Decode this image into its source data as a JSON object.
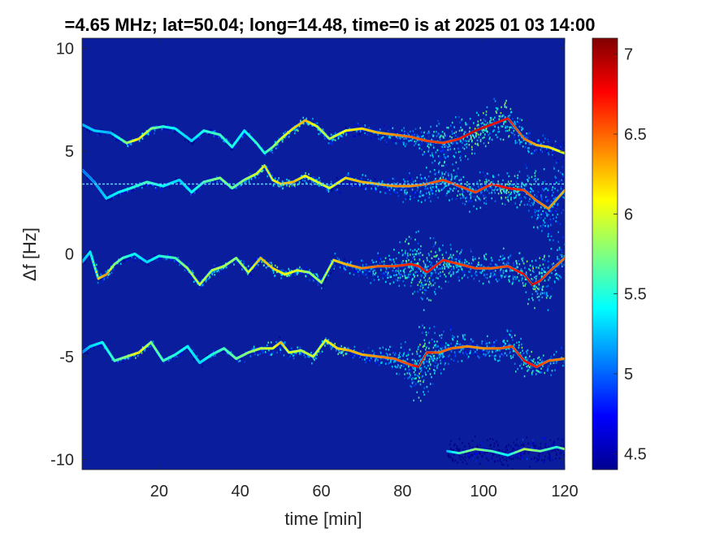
{
  "chart_data": {
    "type": "heatmap",
    "title": "=4.65 MHz;  lat=50.04; long=14.48, time=0 is at 2025 01 03 14:00",
    "xlabel": "time [min]",
    "ylabel": "Δf [Hz]",
    "xlim": [
      1,
      120
    ],
    "ylim": [
      -10.5,
      10.5
    ],
    "xticks": [
      20,
      40,
      60,
      80,
      100,
      120
    ],
    "xtick_labels": [
      "20",
      "40",
      "60",
      "80",
      "100",
      "120"
    ],
    "yticks": [
      -10,
      -5,
      0,
      5,
      10
    ],
    "ytick_labels": [
      "-10",
      "-5",
      "0",
      "5",
      "10"
    ],
    "colorbar": {
      "range": [
        4.4,
        7.1
      ],
      "ticks": [
        4.5,
        5,
        5.5,
        6,
        6.5,
        7
      ],
      "tick_labels": [
        "4.5",
        "5",
        "5.5",
        "6",
        "6.5",
        "7"
      ],
      "colormap": "jet"
    },
    "background_color": "#0a1d9c",
    "horizontal_line": {
      "y": 3.4,
      "color": "#5fd0ff"
    },
    "series": [
      {
        "x": [
          1,
          4,
          8,
          12,
          15,
          18,
          21,
          24,
          28,
          31,
          35,
          38,
          41,
          44,
          46,
          48,
          50,
          53,
          56,
          59,
          62,
          66,
          70,
          74,
          78,
          82,
          86,
          90,
          94,
          98,
          102,
          106,
          108,
          110,
          113,
          116,
          120
        ],
        "y": [
          6.3,
          6.0,
          5.9,
          5.4,
          5.6,
          6.1,
          6.2,
          6.1,
          5.5,
          6.0,
          5.8,
          5.2,
          6.0,
          5.4,
          4.9,
          5.2,
          5.6,
          6.1,
          6.5,
          6.2,
          5.6,
          6.0,
          6.1,
          5.9,
          5.8,
          5.7,
          5.5,
          5.4,
          5.6,
          6.0,
          6.3,
          6.6,
          6.1,
          5.6,
          5.3,
          5.2,
          4.9
        ],
        "intensity": [
          5.2,
          5.3,
          5.2,
          5.8,
          6.2,
          5.8,
          5.5,
          5.4,
          5.3,
          5.5,
          5.6,
          5.5,
          5.4,
          5.6,
          5.5,
          5.8,
          6.0,
          6.2,
          6.3,
          6.0,
          5.9,
          6.1,
          6.2,
          6.3,
          6.4,
          6.5,
          6.6,
          6.6,
          6.7,
          6.9,
          6.8,
          6.8,
          6.6,
          6.5,
          6.3,
          6.2,
          6.0
        ],
        "spread": [
          0.1,
          0.1,
          0.1,
          0.1,
          0.1,
          0.1,
          0.1,
          0.1,
          0.1,
          0.1,
          0.1,
          0.1,
          0.1,
          0.1,
          0.1,
          0.15,
          0.15,
          0.15,
          0.15,
          0.15,
          0.15,
          0.2,
          0.2,
          0.2,
          0.25,
          0.3,
          0.5,
          0.6,
          0.6,
          0.6,
          0.6,
          0.5,
          0.5,
          0.4,
          0.3,
          0.3,
          0.3
        ]
      },
      {
        "x": [
          1,
          4,
          7,
          10,
          13,
          17,
          21,
          25,
          28,
          31,
          35,
          38,
          41,
          44,
          46,
          48,
          50,
          53,
          56,
          59,
          62,
          66,
          70,
          74,
          78,
          82,
          86,
          90,
          94,
          98,
          102,
          106,
          110,
          113,
          116,
          120
        ],
        "y": [
          4.1,
          3.5,
          2.7,
          3.0,
          3.2,
          3.5,
          3.3,
          3.6,
          3.0,
          3.5,
          3.7,
          3.2,
          3.6,
          3.9,
          4.3,
          3.6,
          3.4,
          3.5,
          3.8,
          3.5,
          3.2,
          3.7,
          3.5,
          3.4,
          3.3,
          3.3,
          3.4,
          3.6,
          3.3,
          3.0,
          3.4,
          3.2,
          3.1,
          2.6,
          2.2,
          3.1
        ],
        "intensity": [
          5.0,
          5.1,
          5.3,
          5.4,
          5.5,
          5.6,
          5.4,
          5.3,
          5.4,
          5.6,
          5.8,
          5.7,
          5.8,
          6.0,
          6.2,
          6.1,
          6.2,
          6.3,
          6.1,
          6.0,
          6.0,
          6.2,
          6.3,
          6.3,
          6.4,
          6.4,
          6.5,
          6.6,
          6.6,
          6.6,
          6.7,
          6.8,
          6.6,
          6.5,
          6.4,
          6.3
        ],
        "spread": [
          0.1,
          0.1,
          0.1,
          0.1,
          0.1,
          0.1,
          0.1,
          0.1,
          0.1,
          0.1,
          0.1,
          0.1,
          0.1,
          0.15,
          0.2,
          0.2,
          0.15,
          0.15,
          0.15,
          0.15,
          0.2,
          0.2,
          0.2,
          0.2,
          0.3,
          0.4,
          0.6,
          0.6,
          0.5,
          0.5,
          0.4,
          0.5,
          0.6,
          0.8,
          1.0,
          0.8
        ]
      },
      {
        "x": [
          1,
          3,
          5,
          7,
          9,
          11,
          14,
          17,
          20,
          24,
          27,
          30,
          33,
          36,
          39,
          42,
          45,
          48,
          51,
          54,
          57,
          60,
          63,
          66,
          70,
          74,
          78,
          82,
          84,
          86,
          90,
          94,
          98,
          102,
          106,
          110,
          112,
          114,
          116,
          120
        ],
        "y": [
          -0.4,
          0.1,
          -1.2,
          -1.0,
          -0.5,
          -0.2,
          0.0,
          -0.4,
          -0.1,
          -0.2,
          -0.7,
          -1.5,
          -0.8,
          -0.6,
          -0.2,
          -0.9,
          -0.2,
          -0.7,
          -1.0,
          -0.8,
          -0.9,
          -1.4,
          -0.3,
          -0.5,
          -0.7,
          -0.6,
          -0.6,
          -0.5,
          -0.6,
          -0.9,
          -0.3,
          -0.5,
          -0.7,
          -0.7,
          -0.6,
          -1.0,
          -1.5,
          -1.3,
          -0.9,
          -0.2
        ],
        "intensity": [
          5.2,
          5.4,
          6.2,
          6.4,
          5.8,
          5.6,
          5.4,
          5.3,
          5.5,
          5.6,
          5.9,
          6.0,
          5.9,
          5.9,
          5.8,
          6.0,
          6.3,
          6.2,
          6.1,
          6.0,
          5.8,
          5.9,
          6.2,
          6.3,
          6.4,
          6.5,
          6.6,
          6.7,
          6.7,
          6.8,
          6.7,
          6.6,
          6.6,
          6.5,
          6.6,
          6.8,
          6.9,
          6.7,
          6.6,
          6.5
        ],
        "spread": [
          0.1,
          0.1,
          0.2,
          0.2,
          0.1,
          0.1,
          0.1,
          0.1,
          0.1,
          0.1,
          0.15,
          0.2,
          0.15,
          0.15,
          0.1,
          0.2,
          0.2,
          0.15,
          0.15,
          0.15,
          0.15,
          0.2,
          0.2,
          0.2,
          0.3,
          0.4,
          0.6,
          0.9,
          1.0,
          0.9,
          0.6,
          0.5,
          0.4,
          0.4,
          0.5,
          0.5,
          0.7,
          0.9,
          0.8,
          0.5
        ]
      },
      {
        "x": [
          1,
          3,
          6,
          9,
          12,
          15,
          18,
          21,
          24,
          27,
          30,
          33,
          36,
          39,
          42,
          45,
          48,
          50,
          52,
          55,
          58,
          61,
          64,
          67,
          70,
          74,
          78,
          82,
          84,
          86,
          89,
          92,
          96,
          100,
          104,
          107,
          110,
          113,
          116,
          120
        ],
        "y": [
          -4.8,
          -4.5,
          -4.3,
          -5.2,
          -5.0,
          -4.8,
          -4.3,
          -5.2,
          -4.9,
          -4.5,
          -5.3,
          -4.9,
          -4.6,
          -5.1,
          -4.8,
          -4.6,
          -4.6,
          -4.3,
          -4.8,
          -4.7,
          -5.0,
          -4.2,
          -4.6,
          -4.7,
          -4.9,
          -5.0,
          -5.1,
          -5.4,
          -5.5,
          -4.8,
          -4.8,
          -4.6,
          -4.5,
          -4.6,
          -4.6,
          -4.5,
          -5.2,
          -5.5,
          -5.2,
          -5.1
        ],
        "intensity": [
          5.0,
          5.3,
          5.4,
          5.6,
          5.8,
          6.2,
          5.8,
          5.6,
          5.5,
          5.4,
          5.3,
          5.5,
          5.6,
          5.7,
          5.8,
          5.9,
          6.0,
          6.3,
          6.0,
          5.9,
          6.0,
          6.1,
          6.2,
          6.3,
          6.3,
          6.4,
          6.5,
          6.6,
          6.9,
          6.7,
          6.5,
          6.5,
          6.4,
          6.4,
          6.5,
          6.6,
          6.8,
          6.7,
          6.5,
          6.4
        ],
        "spread": [
          0.1,
          0.1,
          0.1,
          0.1,
          0.1,
          0.1,
          0.1,
          0.1,
          0.1,
          0.1,
          0.1,
          0.1,
          0.1,
          0.1,
          0.15,
          0.15,
          0.2,
          0.3,
          0.2,
          0.15,
          0.15,
          0.15,
          0.15,
          0.2,
          0.2,
          0.3,
          0.4,
          0.7,
          1.0,
          1.0,
          0.7,
          0.5,
          0.3,
          0.3,
          0.4,
          0.5,
          0.5,
          0.4,
          0.3,
          0.3
        ]
      },
      {
        "x": [
          91,
          94,
          98,
          102,
          106,
          110,
          114,
          118,
          120
        ],
        "y": [
          -9.6,
          -9.7,
          -9.5,
          -9.6,
          -9.8,
          -9.5,
          -9.6,
          -9.4,
          -9.5
        ],
        "intensity": [
          5.2,
          5.6,
          5.8,
          5.6,
          5.4,
          5.9,
          5.7,
          5.5,
          5.8
        ],
        "spread": [
          0.3,
          0.35,
          0.4,
          0.4,
          0.4,
          0.35,
          0.35,
          0.35,
          0.3
        ]
      }
    ]
  }
}
